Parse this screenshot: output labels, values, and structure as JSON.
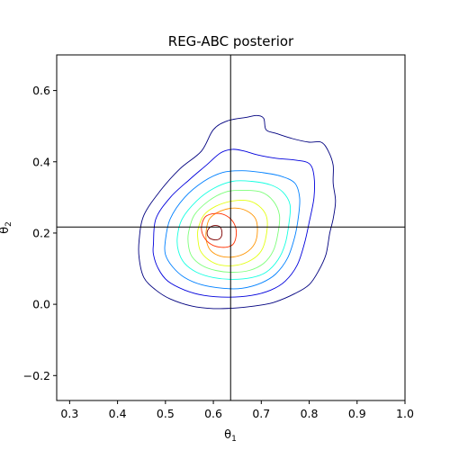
{
  "chart_data": {
    "type": "contour",
    "title": "REG-ABC posterior",
    "xlabel": "θ1",
    "ylabel": "θ2",
    "xlim": [
      0.273,
      1.0
    ],
    "ylim": [
      -0.27,
      0.7
    ],
    "xticks": [
      {
        "v": 0.3,
        "label": "0.3"
      },
      {
        "v": 0.4,
        "label": "0.4"
      },
      {
        "v": 0.5,
        "label": "0.5"
      },
      {
        "v": 0.6,
        "label": "0.6"
      },
      {
        "v": 0.7,
        "label": "0.7"
      },
      {
        "v": 0.8,
        "label": "0.8"
      },
      {
        "v": 0.9,
        "label": "0.9"
      },
      {
        "v": 1.0,
        "label": "1.0"
      }
    ],
    "yticks": [
      {
        "v": -0.2,
        "label": "−0.2"
      },
      {
        "v": 0.0,
        "label": "0.0"
      },
      {
        "v": 0.2,
        "label": "0.2"
      },
      {
        "v": 0.4,
        "label": "0.4"
      },
      {
        "v": 0.6,
        "label": "0.6"
      }
    ],
    "grid": false,
    "reference_lines": {
      "x": 0.636,
      "y": 0.217,
      "color": "#000000"
    },
    "contours": [
      {
        "level": 1,
        "color": "#00007f",
        "points": [
          [
            0.445,
            0.18
          ],
          [
            0.455,
            0.25
          ],
          [
            0.49,
            0.32
          ],
          [
            0.53,
            0.38
          ],
          [
            0.575,
            0.43
          ],
          [
            0.6,
            0.49
          ],
          [
            0.63,
            0.515
          ],
          [
            0.67,
            0.525
          ],
          [
            0.69,
            0.53
          ],
          [
            0.705,
            0.522
          ],
          [
            0.71,
            0.49
          ],
          [
            0.73,
            0.48
          ],
          [
            0.765,
            0.465
          ],
          [
            0.8,
            0.455
          ],
          [
            0.825,
            0.455
          ],
          [
            0.84,
            0.43
          ],
          [
            0.85,
            0.39
          ],
          [
            0.85,
            0.34
          ],
          [
            0.855,
            0.29
          ],
          [
            0.85,
            0.24
          ],
          [
            0.843,
            0.2
          ],
          [
            0.835,
            0.14
          ],
          [
            0.82,
            0.095
          ],
          [
            0.8,
            0.055
          ],
          [
            0.77,
            0.03
          ],
          [
            0.73,
            0.007
          ],
          [
            0.7,
            -0.002
          ],
          [
            0.65,
            -0.01
          ],
          [
            0.6,
            -0.012
          ],
          [
            0.555,
            -0.005
          ],
          [
            0.51,
            0.015
          ],
          [
            0.48,
            0.04
          ],
          [
            0.455,
            0.075
          ],
          [
            0.445,
            0.13
          ],
          [
            0.445,
            0.18
          ]
        ]
      },
      {
        "level": 2,
        "color": "#0000dc",
        "points": [
          [
            0.475,
            0.17
          ],
          [
            0.48,
            0.24
          ],
          [
            0.51,
            0.3
          ],
          [
            0.55,
            0.35
          ],
          [
            0.585,
            0.39
          ],
          [
            0.615,
            0.425
          ],
          [
            0.64,
            0.435
          ],
          [
            0.665,
            0.43
          ],
          [
            0.69,
            0.42
          ],
          [
            0.73,
            0.41
          ],
          [
            0.77,
            0.405
          ],
          [
            0.8,
            0.395
          ],
          [
            0.81,
            0.36
          ],
          [
            0.81,
            0.3
          ],
          [
            0.8,
            0.23
          ],
          [
            0.79,
            0.17
          ],
          [
            0.775,
            0.11
          ],
          [
            0.75,
            0.065
          ],
          [
            0.72,
            0.04
          ],
          [
            0.68,
            0.025
          ],
          [
            0.63,
            0.02
          ],
          [
            0.58,
            0.025
          ],
          [
            0.54,
            0.04
          ],
          [
            0.505,
            0.065
          ],
          [
            0.485,
            0.1
          ],
          [
            0.475,
            0.14
          ],
          [
            0.475,
            0.17
          ]
        ]
      },
      {
        "level": 3,
        "color": "#0080ff",
        "points": [
          [
            0.5,
            0.18
          ],
          [
            0.51,
            0.24
          ],
          [
            0.54,
            0.3
          ],
          [
            0.58,
            0.345
          ],
          [
            0.62,
            0.37
          ],
          [
            0.66,
            0.375
          ],
          [
            0.7,
            0.37
          ],
          [
            0.74,
            0.36
          ],
          [
            0.77,
            0.34
          ],
          [
            0.78,
            0.3
          ],
          [
            0.778,
            0.25
          ],
          [
            0.77,
            0.19
          ],
          [
            0.755,
            0.13
          ],
          [
            0.73,
            0.085
          ],
          [
            0.7,
            0.06
          ],
          [
            0.66,
            0.045
          ],
          [
            0.62,
            0.045
          ],
          [
            0.575,
            0.055
          ],
          [
            0.54,
            0.075
          ],
          [
            0.515,
            0.105
          ],
          [
            0.5,
            0.14
          ],
          [
            0.5,
            0.18
          ]
        ]
      },
      {
        "level": 4,
        "color": "#15ffe1",
        "points": [
          [
            0.525,
            0.19
          ],
          [
            0.535,
            0.24
          ],
          [
            0.565,
            0.29
          ],
          [
            0.6,
            0.325
          ],
          [
            0.64,
            0.345
          ],
          [
            0.68,
            0.345
          ],
          [
            0.72,
            0.335
          ],
          [
            0.745,
            0.315
          ],
          [
            0.76,
            0.28
          ],
          [
            0.758,
            0.23
          ],
          [
            0.75,
            0.17
          ],
          [
            0.735,
            0.125
          ],
          [
            0.71,
            0.09
          ],
          [
            0.68,
            0.075
          ],
          [
            0.64,
            0.07
          ],
          [
            0.6,
            0.075
          ],
          [
            0.565,
            0.09
          ],
          [
            0.54,
            0.115
          ],
          [
            0.527,
            0.15
          ],
          [
            0.525,
            0.19
          ]
        ]
      },
      {
        "level": 5,
        "color": "#7dff7a",
        "points": [
          [
            0.548,
            0.2
          ],
          [
            0.56,
            0.25
          ],
          [
            0.59,
            0.29
          ],
          [
            0.625,
            0.315
          ],
          [
            0.66,
            0.32
          ],
          [
            0.7,
            0.315
          ],
          [
            0.725,
            0.29
          ],
          [
            0.738,
            0.25
          ],
          [
            0.735,
            0.2
          ],
          [
            0.725,
            0.15
          ],
          [
            0.705,
            0.115
          ],
          [
            0.675,
            0.095
          ],
          [
            0.64,
            0.09
          ],
          [
            0.605,
            0.095
          ],
          [
            0.575,
            0.11
          ],
          [
            0.555,
            0.135
          ],
          [
            0.548,
            0.165
          ],
          [
            0.548,
            0.2
          ]
        ]
      },
      {
        "level": 6,
        "color": "#e4ff13",
        "points": [
          [
            0.568,
            0.21
          ],
          [
            0.58,
            0.25
          ],
          [
            0.605,
            0.275
          ],
          [
            0.64,
            0.29
          ],
          [
            0.675,
            0.29
          ],
          [
            0.7,
            0.27
          ],
          [
            0.712,
            0.24
          ],
          [
            0.71,
            0.19
          ],
          [
            0.7,
            0.15
          ],
          [
            0.68,
            0.125
          ],
          [
            0.65,
            0.11
          ],
          [
            0.615,
            0.11
          ],
          [
            0.59,
            0.125
          ],
          [
            0.573,
            0.15
          ],
          [
            0.568,
            0.18
          ],
          [
            0.568,
            0.21
          ]
        ]
      },
      {
        "level": 7,
        "color": "#ff9400",
        "points": [
          [
            0.585,
            0.205
          ],
          [
            0.592,
            0.24
          ],
          [
            0.615,
            0.262
          ],
          [
            0.645,
            0.27
          ],
          [
            0.67,
            0.262
          ],
          [
            0.688,
            0.24
          ],
          [
            0.692,
            0.205
          ],
          [
            0.686,
            0.17
          ],
          [
            0.668,
            0.145
          ],
          [
            0.642,
            0.133
          ],
          [
            0.615,
            0.135
          ],
          [
            0.595,
            0.15
          ],
          [
            0.586,
            0.175
          ],
          [
            0.585,
            0.205
          ]
        ]
      },
      {
        "level": 8,
        "color": "#ff3000",
        "points": [
          [
            0.575,
            0.215
          ],
          [
            0.583,
            0.245
          ],
          [
            0.603,
            0.255
          ],
          [
            0.625,
            0.25
          ],
          [
            0.642,
            0.23
          ],
          [
            0.648,
            0.2
          ],
          [
            0.642,
            0.17
          ],
          [
            0.625,
            0.16
          ],
          [
            0.6,
            0.165
          ],
          [
            0.582,
            0.185
          ],
          [
            0.575,
            0.215
          ]
        ]
      },
      {
        "level": 9,
        "color": "#7f0000",
        "points": [
          [
            0.587,
            0.2
          ],
          [
            0.592,
            0.215
          ],
          [
            0.603,
            0.221
          ],
          [
            0.614,
            0.217
          ],
          [
            0.618,
            0.2
          ],
          [
            0.614,
            0.185
          ],
          [
            0.603,
            0.181
          ],
          [
            0.591,
            0.187
          ],
          [
            0.587,
            0.2
          ]
        ]
      }
    ]
  }
}
